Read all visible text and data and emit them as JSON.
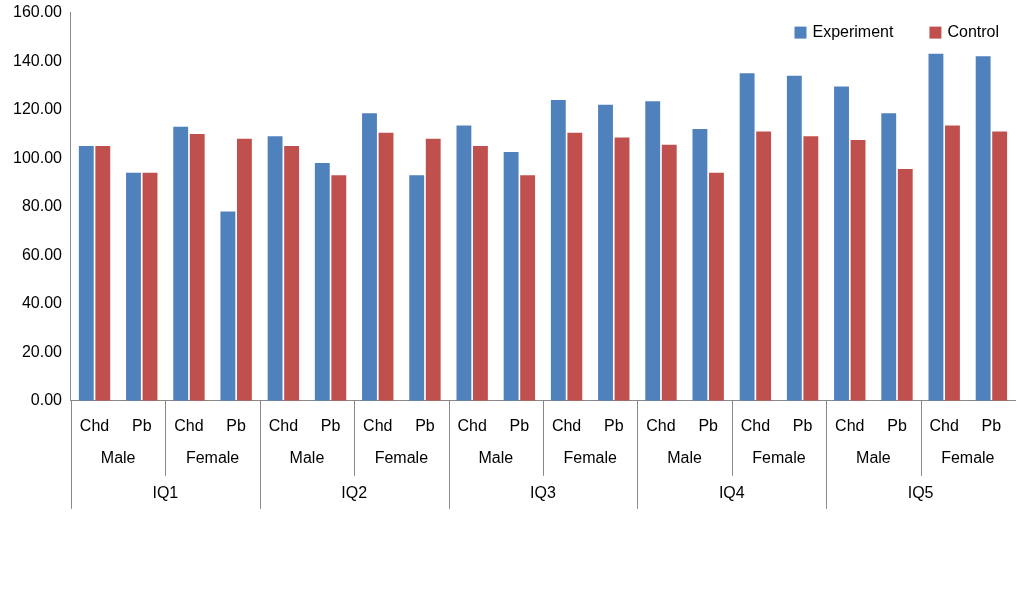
{
  "chart_data": {
    "type": "bar",
    "categories": [
      "Chd",
      "Pb",
      "Chd",
      "Pb",
      "Chd",
      "Pb",
      "Chd",
      "Pb",
      "Chd",
      "Pb",
      "Chd",
      "Pb",
      "Chd",
      "Pb",
      "Chd",
      "Pb",
      "Chd",
      "Pb",
      "Chd",
      "Pb"
    ],
    "series": [
      {
        "name": "Experiment",
        "color": "#4f81bd",
        "values": [
          105,
          94,
          113,
          78,
          109,
          98,
          118.5,
          93,
          113.5,
          102.5,
          124,
          122,
          123.5,
          112,
          135,
          134,
          129.5,
          118.5,
          143,
          142
        ]
      },
      {
        "name": "Control",
        "color": "#c0504d",
        "values": [
          105,
          94,
          110,
          108,
          105,
          93,
          110.5,
          108,
          105,
          93,
          110.5,
          108.5,
          105.5,
          94,
          111,
          109,
          107.5,
          95.5,
          113.5,
          111
        ]
      }
    ],
    "annotations": [
      "Male",
      "Female",
      "Male",
      "Female",
      "Male",
      "Female",
      "Male",
      "Female",
      "Male",
      "Female",
      "IQ1",
      "IQ2",
      "IQ3",
      "IQ4",
      "IQ5"
    ],
    "ylim": [
      0,
      160
    ],
    "yticks": [
      {
        "value": 0,
        "label": "0.00"
      },
      {
        "value": 20,
        "label": "20.00"
      },
      {
        "value": 40,
        "label": "40.00"
      },
      {
        "value": 60,
        "label": "60.00"
      },
      {
        "value": 80,
        "label": "80.00"
      },
      {
        "value": 100,
        "label": "100.00"
      },
      {
        "value": 120,
        "label": "120.00"
      },
      {
        "value": 140,
        "label": "140.00"
      },
      {
        "value": 160,
        "label": "160.00"
      }
    ],
    "grid": false,
    "legend": "top right"
  }
}
